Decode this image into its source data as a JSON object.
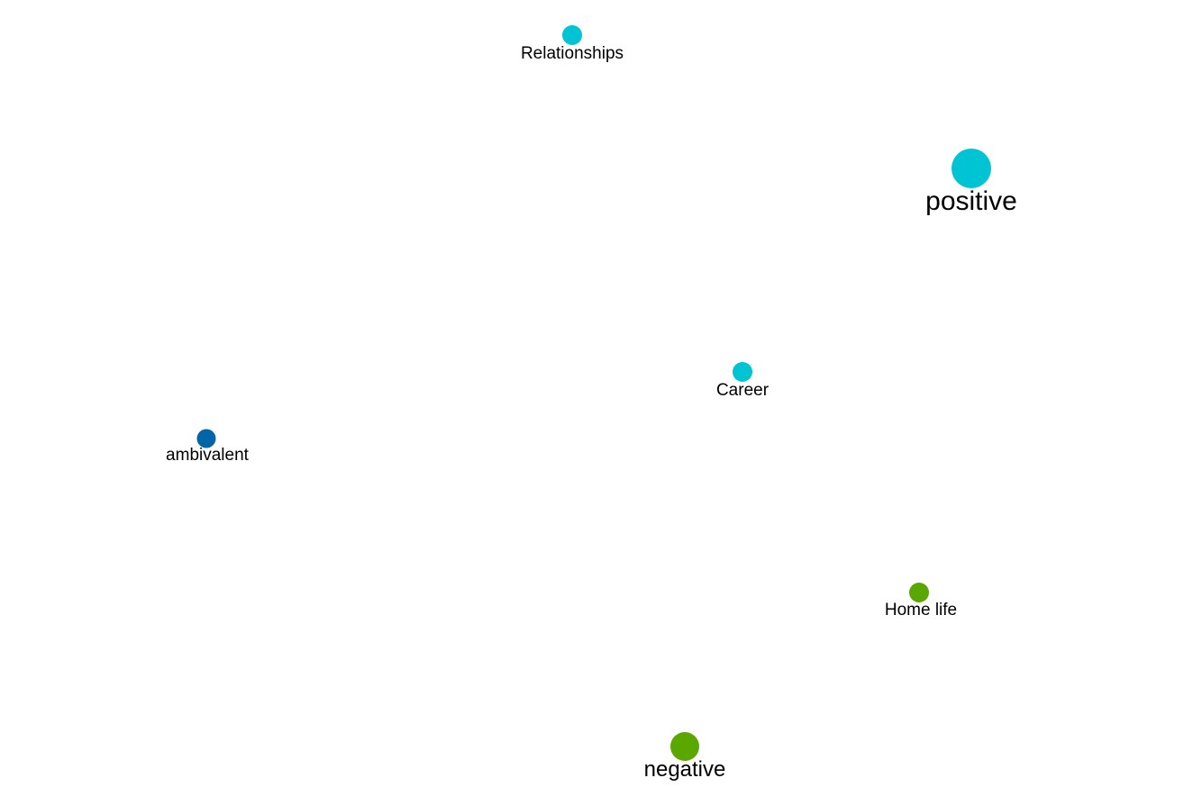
{
  "legend_colors": {
    "positive": "#00c4d3",
    "negative": "#5aa700",
    "ambivalent": "#0066a8"
  },
  "nodes": [
    {
      "id": "relationships",
      "label": "Relationships",
      "sentiment": "positive"
    },
    {
      "id": "positive",
      "label": "positive",
      "sentiment": "positive"
    },
    {
      "id": "career",
      "label": "Career",
      "sentiment": "positive"
    },
    {
      "id": "ambivalent",
      "label": "ambivalent",
      "sentiment": "ambivalent"
    },
    {
      "id": "home-life",
      "label": "Home life",
      "sentiment": "negative"
    },
    {
      "id": "negative",
      "label": "negative",
      "sentiment": "negative"
    }
  ]
}
